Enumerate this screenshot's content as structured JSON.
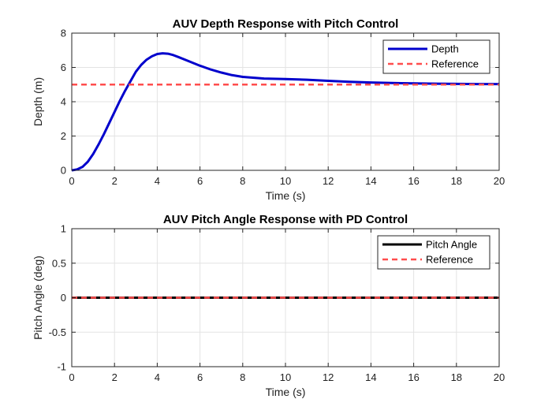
{
  "chart_data": [
    {
      "type": "line",
      "title": "AUV Depth Response with Pitch Control",
      "xlabel": "Time (s)",
      "ylabel": "Depth (m)",
      "xlim": [
        0,
        20
      ],
      "ylim": [
        0,
        8
      ],
      "xticks": [
        0,
        2,
        4,
        6,
        8,
        10,
        12,
        14,
        16,
        18,
        20
      ],
      "yticks": [
        0,
        2,
        4,
        6,
        8
      ],
      "grid": true,
      "legend_position": "top-right",
      "series": [
        {
          "name": "Depth",
          "color": "#0000cc",
          "style": "solid",
          "x": [
            0,
            0.25,
            0.5,
            0.75,
            1,
            1.25,
            1.5,
            1.75,
            2,
            2.25,
            2.5,
            2.75,
            3,
            3.25,
            3.5,
            3.75,
            4,
            4.25,
            4.5,
            4.75,
            5,
            5.5,
            6,
            6.5,
            7,
            7.5,
            8,
            9,
            10,
            11,
            12,
            13,
            14,
            15,
            16,
            17,
            18,
            19,
            20
          ],
          "y": [
            0,
            0.05,
            0.2,
            0.5,
            0.95,
            1.5,
            2.1,
            2.75,
            3.4,
            4.05,
            4.65,
            5.2,
            5.75,
            6.15,
            6.45,
            6.65,
            6.78,
            6.82,
            6.8,
            6.72,
            6.6,
            6.35,
            6.1,
            5.88,
            5.7,
            5.55,
            5.45,
            5.35,
            5.32,
            5.28,
            5.22,
            5.16,
            5.12,
            5.09,
            5.07,
            5.05,
            5.04,
            5.03,
            5.03
          ]
        },
        {
          "name": "Reference",
          "color": "#ff4d4d",
          "style": "dashed",
          "x": [
            0,
            20
          ],
          "y": [
            5,
            5
          ]
        }
      ]
    },
    {
      "type": "line",
      "title": "AUV Pitch Angle Response with PD Control",
      "xlabel": "Time (s)",
      "ylabel": "Pitch Angle (deg)",
      "xlim": [
        0,
        20
      ],
      "ylim": [
        -1,
        1
      ],
      "xticks": [
        0,
        2,
        4,
        6,
        8,
        10,
        12,
        14,
        16,
        18,
        20
      ],
      "yticks": [
        -1,
        -0.5,
        0,
        0.5,
        1
      ],
      "grid": true,
      "legend_position": "top-right",
      "series": [
        {
          "name": "Pitch Angle",
          "color": "#000000",
          "style": "solid",
          "x": [
            0,
            20
          ],
          "y": [
            0,
            0
          ]
        },
        {
          "name": "Reference",
          "color": "#ff4d4d",
          "style": "dashed",
          "x": [
            0,
            20
          ],
          "y": [
            0,
            0
          ]
        }
      ]
    }
  ]
}
